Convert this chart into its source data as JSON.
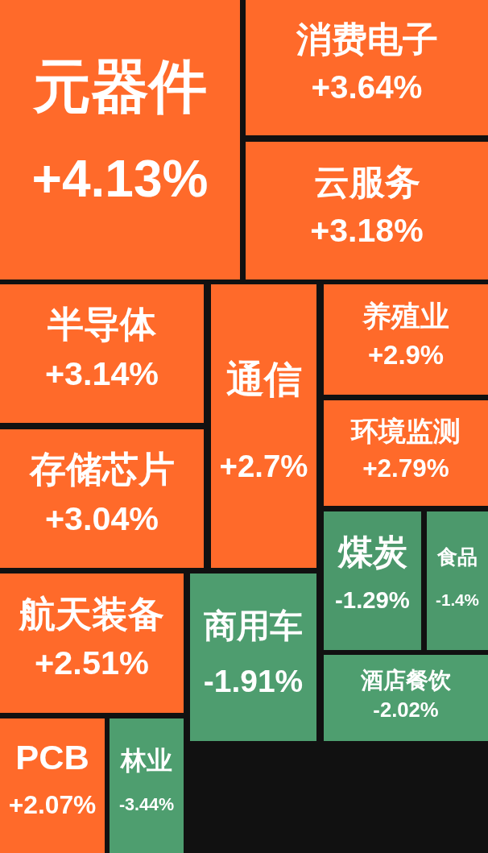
{
  "chart_data": {
    "type": "other",
    "categories": [
      "元器件",
      "消费电子",
      "云服务",
      "半导体",
      "存储芯片",
      "通信",
      "养殖业",
      "环境监测",
      "煤炭",
      "食品",
      "航天装备",
      "商用车",
      "酒店餐饮",
      "PCB",
      "林业"
    ],
    "values": [
      4.13,
      3.64,
      3.18,
      3.14,
      3.04,
      2.7,
      2.9,
      2.79,
      -1.29,
      -1.4,
      2.51,
      -1.91,
      -2.02,
      2.07,
      -3.44
    ],
    "value_labels": [
      "+4.13%",
      "+3.64%",
      "+3.18%",
      "+3.14%",
      "+3.04%",
      "+2.7%",
      "+2.9%",
      "+2.79%",
      "-1.29%",
      "-1.4%",
      "+2.51%",
      "-1.91%",
      "-2.02%",
      "+2.07%",
      "-3.44%"
    ],
    "colors": [
      "#ff6a2a",
      "#ff6a2a",
      "#ff6a2a",
      "#ff6a2a",
      "#ff6a2a",
      "#ff6a2a",
      "#ff6a2a",
      "#ff6a2a",
      "#4e9e6f",
      "#4e9e6f",
      "#ff6a2a",
      "#4e9e6f",
      "#4e9e6f",
      "#ff6a2a",
      "#4e9e6f"
    ]
  }
}
